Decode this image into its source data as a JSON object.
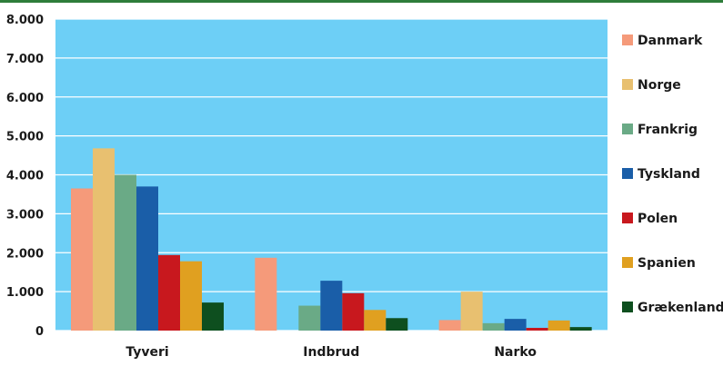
{
  "chart_data": {
    "type": "bar",
    "title": "",
    "xlabel": "",
    "ylabel": "",
    "categories": [
      "Tyveri",
      "Indbrud",
      "Narko"
    ],
    "ylim": [
      0,
      8000
    ],
    "y_ticks": [
      {
        "value": 0,
        "label": "0"
      },
      {
        "value": 1000,
        "label": "1.000"
      },
      {
        "value": 2000,
        "label": "2.000"
      },
      {
        "value": 3000,
        "label": "3.000"
      },
      {
        "value": 4000,
        "label": "4.000"
      },
      {
        "value": 5000,
        "label": "5.000"
      },
      {
        "value": 6000,
        "label": "6.000"
      },
      {
        "value": 7000,
        "label": "7.000"
      },
      {
        "value": 8000,
        "label": "8.000"
      }
    ],
    "grid": true,
    "legend_position": "right",
    "plot_background": "#6dcff6",
    "series": [
      {
        "name": "Danmark",
        "color": "#f59a7a",
        "values": [
          3650,
          1870,
          270
        ]
      },
      {
        "name": "Norge",
        "color": "#e8c070",
        "values": [
          4680,
          0,
          1000
        ]
      },
      {
        "name": "Frankrig",
        "color": "#6aaa86",
        "values": [
          4000,
          640,
          190
        ]
      },
      {
        "name": "Tyskland",
        "color": "#1a5ea8",
        "values": [
          3700,
          1280,
          300
        ]
      },
      {
        "name": "Polen",
        "color": "#c8181e",
        "values": [
          1940,
          960,
          70
        ]
      },
      {
        "name": "Spanien",
        "color": "#e0a020",
        "values": [
          1780,
          530,
          260
        ]
      },
      {
        "name": "Grækenland",
        "color": "#0e4f1f",
        "values": [
          720,
          320,
          90
        ]
      }
    ]
  }
}
